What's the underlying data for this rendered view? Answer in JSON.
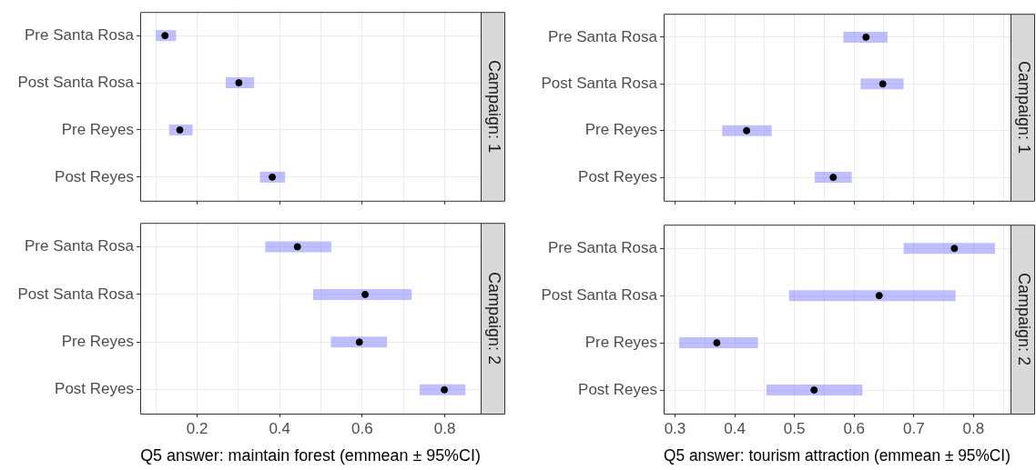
{
  "chart_data": [
    {
      "type": "scatter",
      "orientation": "horizontal",
      "title": "Campaign: 1",
      "categories": [
        "Pre Santa Rosa",
        "Post Santa Rosa",
        "Pre Reyes",
        "Post Reyes"
      ],
      "series": [
        {
          "color": "#000000",
          "values": [
            0.122,
            0.301,
            0.158,
            0.382
          ],
          "errors": [
            [
              0.1,
              0.149
            ],
            [
              0.269,
              0.338
            ],
            [
              0.132,
              0.189
            ],
            [
              0.352,
              0.413
            ]
          ]
        }
      ],
      "xlim": [
        0.062,
        0.887
      ],
      "xticks": [
        {
          "value": 0.1,
          "label": null
        },
        0.2,
        {
          "value": 0.3,
          "label": null
        },
        0.4,
        {
          "value": 0.5,
          "label": null
        },
        0.6,
        {
          "value": 0.7,
          "label": null
        },
        0.8
      ],
      "tick_labels": "y",
      "grid": true,
      "marker": "circle"
    },
    {
      "type": "scatter",
      "orientation": "horizontal",
      "title": "Campaign: 2",
      "xlabel": "Q5 answer: maintain forest (emmean ± 95%CI)",
      "categories": [
        "Pre Santa Rosa",
        "Post Santa Rosa",
        "Pre Reyes",
        "Post Reyes"
      ],
      "series": [
        {
          "color": "#000000",
          "values": [
            0.443,
            0.607,
            0.593,
            0.799
          ],
          "errors": [
            [
              0.365,
              0.525
            ],
            [
              0.481,
              0.72
            ],
            [
              0.524,
              0.66
            ],
            [
              0.739,
              0.85
            ]
          ]
        }
      ],
      "xlim": [
        0.062,
        0.887
      ],
      "xticks": [
        {
          "value": 0.1,
          "label": null
        },
        0.2,
        {
          "value": 0.3,
          "label": null
        },
        0.4,
        {
          "value": 0.5,
          "label": null
        },
        0.6,
        {
          "value": 0.7,
          "label": null
        },
        0.8
      ],
      "grid": true,
      "marker": "circle"
    },
    {
      "type": "scatter",
      "orientation": "horizontal",
      "title": "Campaign: 1",
      "categories": [
        "Pre Santa Rosa",
        "Post Santa Rosa",
        "Pre Reyes",
        "Post Reyes"
      ],
      "series": [
        {
          "color": "#000000",
          "values": [
            0.62,
            0.648,
            0.42,
            0.565
          ],
          "errors": [
            [
              0.582,
              0.656
            ],
            [
              0.611,
              0.683
            ],
            [
              0.379,
              0.462
            ],
            [
              0.534,
              0.596
            ]
          ]
        }
      ],
      "xlim": [
        0.281,
        0.862
      ],
      "xticks": [
        0.3,
        {
          "value": 0.35,
          "label": null
        },
        0.4,
        {
          "value": 0.45,
          "label": null
        },
        0.5,
        {
          "value": 0.55,
          "label": null
        },
        0.6,
        {
          "value": 0.65,
          "label": null
        },
        0.7,
        {
          "value": 0.75,
          "label": null
        },
        0.8,
        {
          "value": 0.85,
          "label": null
        }
      ],
      "tick_labels": "y",
      "grid": true,
      "marker": "circle"
    },
    {
      "type": "scatter",
      "orientation": "horizontal",
      "title": "Campaign: 2",
      "xlabel": "Q5 answer: tourism attraction (emmean ± 95%CI)",
      "categories": [
        "Pre Santa Rosa",
        "Post Santa Rosa",
        "Pre Reyes",
        "Post Reyes"
      ],
      "series": [
        {
          "color": "#000000",
          "values": [
            0.768,
            0.642,
            0.37,
            0.533
          ],
          "errors": [
            [
              0.683,
              0.836
            ],
            [
              0.491,
              0.77
            ],
            [
              0.307,
              0.439
            ],
            [
              0.453,
              0.614
            ]
          ]
        }
      ],
      "xlim": [
        0.281,
        0.862
      ],
      "xticks": [
        0.3,
        {
          "value": 0.35,
          "label": null
        },
        0.4,
        {
          "value": 0.45,
          "label": null
        },
        0.5,
        {
          "value": 0.55,
          "label": null
        },
        0.6,
        {
          "value": 0.65,
          "label": null
        },
        0.7,
        {
          "value": 0.75,
          "label": null
        },
        0.8,
        {
          "value": 0.85,
          "label": null
        }
      ],
      "grid": true,
      "marker": "circle"
    }
  ]
}
